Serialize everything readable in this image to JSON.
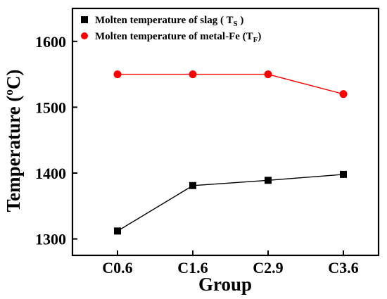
{
  "chart_data": {
    "type": "line",
    "xlabel": "Group",
    "ylabel_main": "Temperature (",
    "ylabel_sup": "o",
    "ylabel_end": "C)",
    "categories": [
      "C0.6",
      "C1.6",
      "C2.9",
      "C3.6"
    ],
    "ylim": [
      1275,
      1650
    ],
    "yticks": [
      1300,
      1400,
      1500,
      1600
    ],
    "ytick_labels": [
      "1300",
      "1400",
      "1500",
      "1600"
    ],
    "legend_position": "top-left",
    "grid": false,
    "series": [
      {
        "name_main": "Molten temperature of slag ( T",
        "name_sub": "S",
        "name_end": " )",
        "color": "#000000",
        "marker": "square",
        "values": [
          1312,
          1381,
          1389,
          1398
        ]
      },
      {
        "name_main": "Molten temperature of metal-Fe (T",
        "name_sub": "F",
        "name_end": ")",
        "color": "#ff0000",
        "marker": "circle",
        "values": [
          1550,
          1550,
          1550,
          1520
        ]
      }
    ]
  }
}
